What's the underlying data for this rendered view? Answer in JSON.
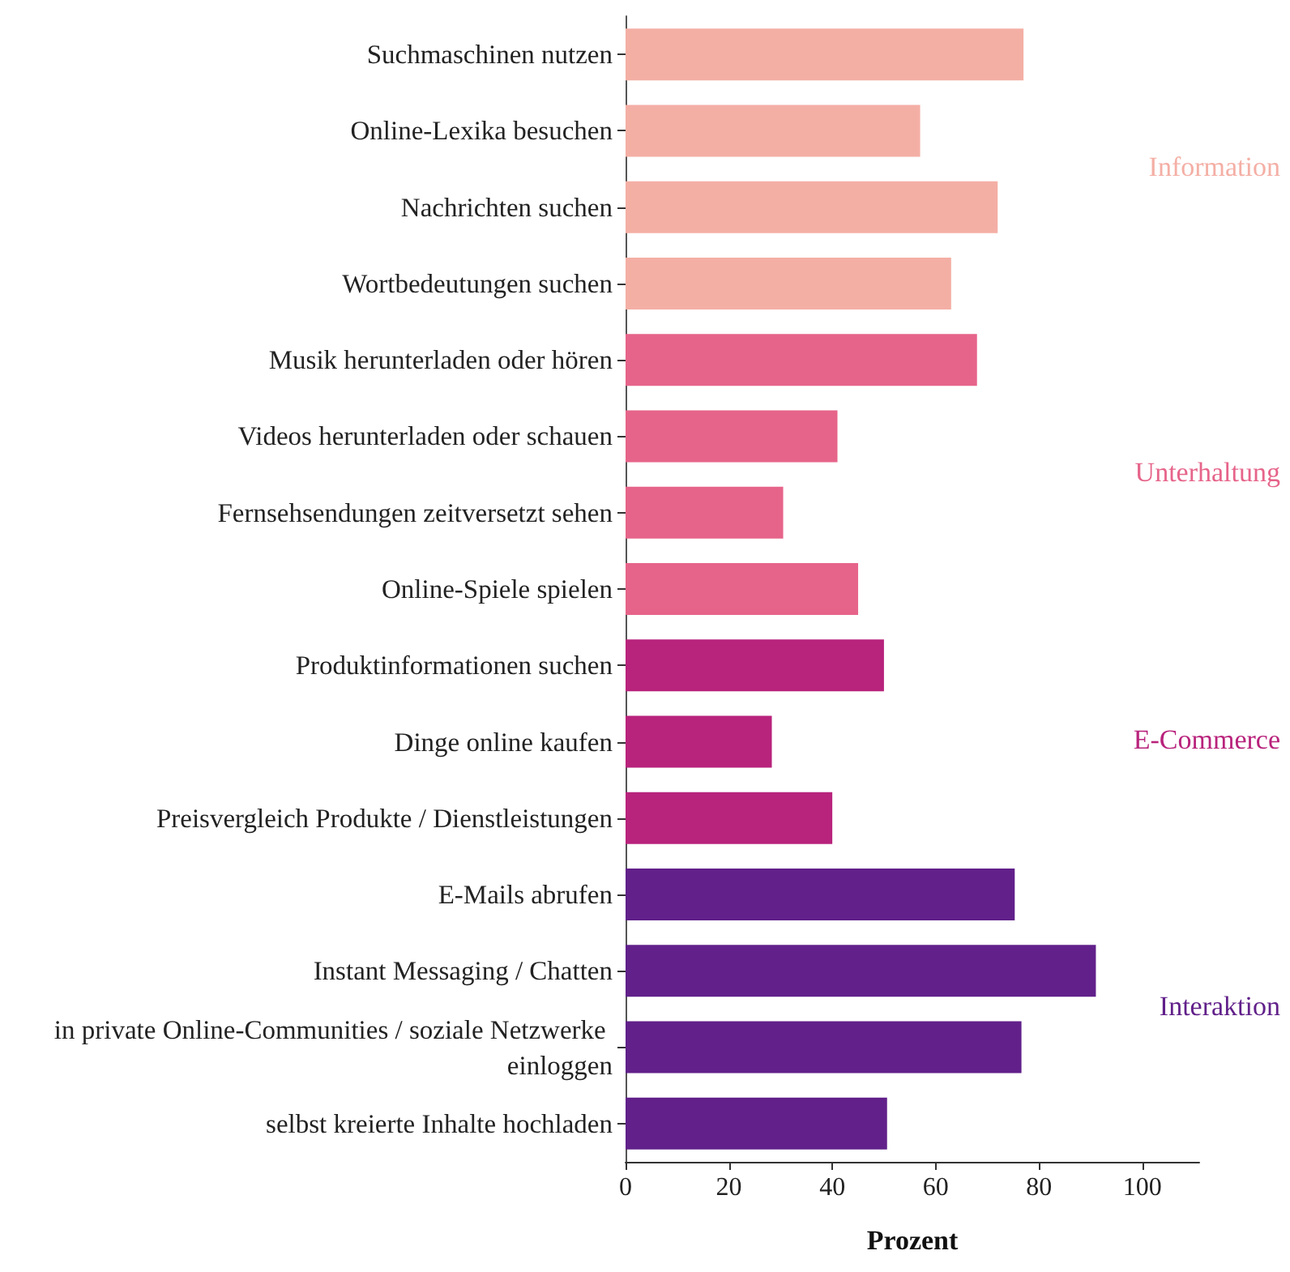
{
  "chart_data": {
    "type": "bar",
    "orientation": "horizontal",
    "stacked": true,
    "xlabel": "Prozent",
    "categories": [
      "Suchmaschinen nutzen",
      "Online-Lexika besuchen",
      "Nachrichten suchen",
      "Wortbedeutungen suchen",
      "Musik herunterladen oder hören",
      "Videos herunterladen oder schauen",
      "Fernsehsendungen zeitversetzt sehen",
      "Online-Spiele spielen",
      "Produktinformationen suchen",
      "Dinge online kaufen",
      "Preisvergleich Produkte / Dienstleistungen",
      "E-Mails abrufen",
      "Instant Messaging / Chatten",
      "in private Online-Communities / soziale Netzwerke einloggen",
      "selbst kreierte Inhalte hochladen"
    ],
    "series": [
      {
        "name": "Information",
        "color": "#f4afa5",
        "values": [
          77,
          57,
          72,
          63,
          null,
          null,
          null,
          null,
          null,
          null,
          null,
          null,
          null,
          null,
          null
        ]
      },
      {
        "name": "Unterhaltung",
        "color": "#e6648a",
        "values": [
          null,
          null,
          null,
          null,
          68,
          41,
          30.5,
          45,
          null,
          null,
          null,
          null,
          null,
          null,
          null
        ]
      },
      {
        "name": "E-Commerce",
        "color": "#b8237c",
        "values": [
          null,
          null,
          null,
          null,
          null,
          null,
          null,
          null,
          50,
          28.3,
          40,
          null,
          null,
          null,
          null
        ]
      },
      {
        "name": "Interaktion",
        "color": "#61208a",
        "values": [
          null,
          null,
          null,
          null,
          null,
          null,
          null,
          null,
          null,
          null,
          null,
          75.3,
          91,
          76.6,
          50.6
        ]
      }
    ],
    "xlim": [
      0,
      111
    ],
    "xticks": [
      0,
      20,
      40,
      60,
      80,
      100
    ],
    "grid": false,
    "legend": "right"
  }
}
